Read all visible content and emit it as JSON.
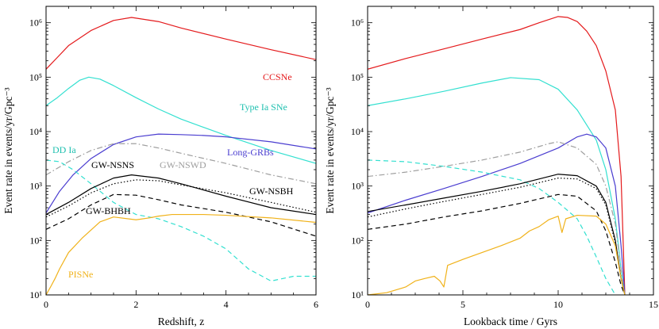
{
  "chart_data": [
    {
      "type": "line",
      "xlabel": "Redshift, z",
      "ylabel": "Event rate in events/yr/Gpc⁻³",
      "xlim": [
        0,
        6
      ],
      "ylim": [
        10,
        2000000
      ],
      "yscale": "log",
      "x_ticks": [
        "0",
        "2",
        "4",
        "6"
      ],
      "y_ticks": [
        {
          "label": "10⁶",
          "value": 1000000
        },
        {
          "label": "10⁵",
          "value": 100000
        },
        {
          "label": "10⁴",
          "value": 10000
        },
        {
          "label": "10³",
          "value": 1000
        },
        {
          "label": "10²",
          "value": 100
        },
        {
          "label": "10¹",
          "value": 10
        }
      ],
      "grid": false,
      "series": [
        {
          "name": "CCSNe",
          "color": "#e41a1c",
          "dash": "solid",
          "x": [
            0,
            0.25,
            0.5,
            1,
            1.5,
            1.9,
            2.5,
            3,
            4,
            5,
            6
          ],
          "y": [
            140000,
            230000,
            380000,
            720000,
            1100000,
            1250000,
            1050000,
            800000,
            500000,
            320000,
            210000
          ]
        },
        {
          "name": "Type Ia SNe",
          "color": "#33e0d0",
          "dash": "solid",
          "x": [
            0,
            0.25,
            0.5,
            0.75,
            0.95,
            1.2,
            1.5,
            2,
            2.5,
            3,
            3.5,
            4,
            5,
            6
          ],
          "y": [
            30000,
            42000,
            62000,
            88000,
            100000,
            92000,
            70000,
            42000,
            26000,
            17000,
            12000,
            8500,
            4500,
            2600
          ]
        },
        {
          "name": "Long-GRBs",
          "color": "#4a3dd0",
          "dash": "solid",
          "x": [
            0,
            0.3,
            0.6,
            1,
            1.5,
            2,
            2.5,
            3,
            3.5,
            4,
            5,
            6
          ],
          "y": [
            320,
            800,
            1600,
            3200,
            5800,
            8000,
            9000,
            8800,
            8500,
            8000,
            6500,
            4800
          ]
        },
        {
          "name": "DD Ia",
          "color": "#33e0d0",
          "dash": "dashed",
          "x": [
            0,
            0.3,
            0.6,
            1,
            1.5,
            2,
            2.5,
            3,
            3.5,
            4,
            4.5,
            5,
            5.5,
            6
          ],
          "y": [
            3000,
            2800,
            2000,
            1100,
            500,
            300,
            250,
            180,
            120,
            70,
            30,
            18,
            22,
            22
          ]
        },
        {
          "name": "GW-NSWD",
          "color": "#9e9e9e",
          "dash": "dashdot",
          "x": [
            0,
            0.5,
            1,
            1.5,
            2,
            2.5,
            3,
            4,
            5,
            6
          ],
          "y": [
            1600,
            2800,
            4500,
            6000,
            6000,
            5000,
            4000,
            2600,
            1600,
            1100
          ]
        },
        {
          "name": "GW-NSNS",
          "color": "#000000",
          "dash": "solid",
          "x": [
            0,
            0.5,
            1,
            1.5,
            1.9,
            2.5,
            3,
            4,
            5,
            6
          ],
          "y": [
            300,
            500,
            900,
            1400,
            1600,
            1400,
            1100,
            650,
            400,
            300
          ]
        },
        {
          "name": "GW-NSBH",
          "color": "#000000",
          "dash": "dotted",
          "x": [
            0,
            0.5,
            1,
            1.5,
            2,
            2.5,
            3,
            4,
            5,
            6
          ],
          "y": [
            270,
            430,
            750,
            1100,
            1300,
            1250,
            1050,
            750,
            500,
            330
          ]
        },
        {
          "name": "GW-BHBH",
          "color": "#000000",
          "dash": "dashed",
          "x": [
            0,
            0.5,
            1,
            1.5,
            2,
            2.5,
            3,
            4,
            5,
            6
          ],
          "y": [
            160,
            250,
            450,
            700,
            680,
            560,
            450,
            330,
            220,
            120
          ]
        },
        {
          "name": "PISNe",
          "color": "#f0b21a",
          "dash": "solid",
          "x": [
            0,
            0.1,
            0.2,
            0.3,
            0.5,
            0.8,
            1.2,
            1.5,
            2,
            2.3,
            2.5,
            2.8,
            3.5,
            4,
            5,
            6
          ],
          "y": [
            10,
            14,
            20,
            30,
            60,
            110,
            220,
            270,
            240,
            260,
            280,
            300,
            300,
            290,
            260,
            215
          ]
        }
      ],
      "annotations": [
        {
          "text": "CCSNe",
          "color": "#e41a1c"
        },
        {
          "text": "Type Ia SNe",
          "color": "#20c0b0"
        },
        {
          "text": "Long-GRBs",
          "color": "#4a3dd0"
        },
        {
          "text": "DD Ia",
          "color": "#20c0b0"
        },
        {
          "text": "GW-NSNS",
          "color": "#000000"
        },
        {
          "text": "GW-NSWD",
          "color": "#9e9e9e"
        },
        {
          "text": "GW-NSBH",
          "color": "#000000"
        },
        {
          "text": "GW-BHBH",
          "color": "#000000"
        },
        {
          "text": "PISNe",
          "color": "#f0b21a"
        }
      ]
    },
    {
      "type": "line",
      "xlabel": "Lookback time / Gyrs",
      "ylabel": "Event rate in events/yr/Gpc⁻³",
      "xlim": [
        0,
        15
      ],
      "ylim": [
        10,
        2000000
      ],
      "yscale": "log",
      "x_ticks": [
        "0",
        "5",
        "10",
        "15"
      ],
      "y_ticks": [
        {
          "label": "10⁶",
          "value": 1000000
        },
        {
          "label": "10⁵",
          "value": 100000
        },
        {
          "label": "10⁴",
          "value": 10000
        },
        {
          "label": "10³",
          "value": 1000
        },
        {
          "label": "10²",
          "value": 100
        },
        {
          "label": "10¹",
          "value": 10
        }
      ],
      "grid": false,
      "series": [
        {
          "name": "CCSNe",
          "color": "#e41a1c",
          "dash": "solid",
          "x": [
            0,
            2,
            4,
            6,
            8,
            9,
            10,
            10.5,
            11,
            11.5,
            12,
            12.5,
            13,
            13.3,
            13.5
          ],
          "y": [
            140000,
            220000,
            330000,
            500000,
            750000,
            1000000,
            1300000,
            1250000,
            1050000,
            700000,
            380000,
            130000,
            25000,
            1500,
            10
          ]
        },
        {
          "name": "Type Ia SNe",
          "color": "#33e0d0",
          "dash": "solid",
          "x": [
            0,
            2,
            4,
            6,
            7.5,
            9,
            10,
            11,
            12,
            12.5,
            13,
            13.3,
            13.5
          ],
          "y": [
            30000,
            40000,
            55000,
            78000,
            98000,
            90000,
            60000,
            25000,
            7000,
            2000,
            250,
            30,
            10
          ]
        },
        {
          "name": "Long-GRBs",
          "color": "#4a3dd0",
          "dash": "solid",
          "x": [
            0,
            2,
            4,
            6,
            8,
            10,
            11,
            11.5,
            12,
            12.5,
            13,
            13.3,
            13.5
          ],
          "y": [
            320,
            550,
            900,
            1500,
            2600,
            5000,
            8000,
            9000,
            8000,
            5000,
            1000,
            80,
            10
          ]
        },
        {
          "name": "DD Ia",
          "color": "#33e0d0",
          "dash": "dashed",
          "x": [
            0,
            2,
            4,
            6,
            8,
            9,
            10,
            11,
            11.5,
            12,
            12.5,
            13
          ],
          "y": [
            3000,
            2800,
            2300,
            1800,
            1300,
            900,
            500,
            250,
            120,
            50,
            20,
            10
          ]
        },
        {
          "name": "GW-NSWD",
          "color": "#9e9e9e",
          "dash": "dashdot",
          "x": [
            0,
            2,
            4,
            6,
            8,
            9.5,
            10,
            11,
            12,
            12.5,
            13,
            13.3,
            13.5
          ],
          "y": [
            1500,
            1800,
            2300,
            3000,
            4200,
            6000,
            6500,
            5000,
            2500,
            1000,
            200,
            30,
            10
          ]
        },
        {
          "name": "GW-NSNS",
          "color": "#000000",
          "dash": "solid",
          "x": [
            0,
            2,
            4,
            6,
            8,
            10,
            11,
            12,
            12.5,
            13,
            13.3,
            13.5
          ],
          "y": [
            340,
            450,
            600,
            800,
            1100,
            1650,
            1550,
            1000,
            500,
            100,
            20,
            10
          ]
        },
        {
          "name": "GW-NSBH",
          "color": "#000000",
          "dash": "dotted",
          "x": [
            0,
            2,
            4,
            6,
            8,
            10,
            11,
            12,
            12.5,
            13,
            13.3,
            13.5
          ],
          "y": [
            270,
            380,
            520,
            700,
            950,
            1400,
            1350,
            900,
            450,
            90,
            20,
            10
          ]
        },
        {
          "name": "GW-BHBH",
          "color": "#000000",
          "dash": "dashed",
          "x": [
            0,
            2,
            4,
            6,
            8,
            10,
            11,
            12,
            12.5,
            13,
            13.3,
            13.5
          ],
          "y": [
            160,
            200,
            270,
            350,
            480,
            700,
            650,
            350,
            150,
            40,
            15,
            10
          ]
        },
        {
          "name": "PISNe",
          "color": "#f0b21a",
          "dash": "solid",
          "x": [
            0,
            1,
            2,
            2.5,
            3,
            3.5,
            3.8,
            4,
            4.2,
            5,
            6,
            7,
            8,
            8.5,
            9,
            9.5,
            10,
            10.2,
            10.4,
            11,
            12,
            12.5,
            13,
            13.3,
            13.5
          ],
          "y": [
            10,
            11,
            14,
            18,
            20,
            22,
            18,
            14,
            35,
            45,
            60,
            80,
            110,
            150,
            180,
            240,
            280,
            140,
            250,
            290,
            280,
            200,
            80,
            20,
            10
          ]
        }
      ]
    }
  ]
}
